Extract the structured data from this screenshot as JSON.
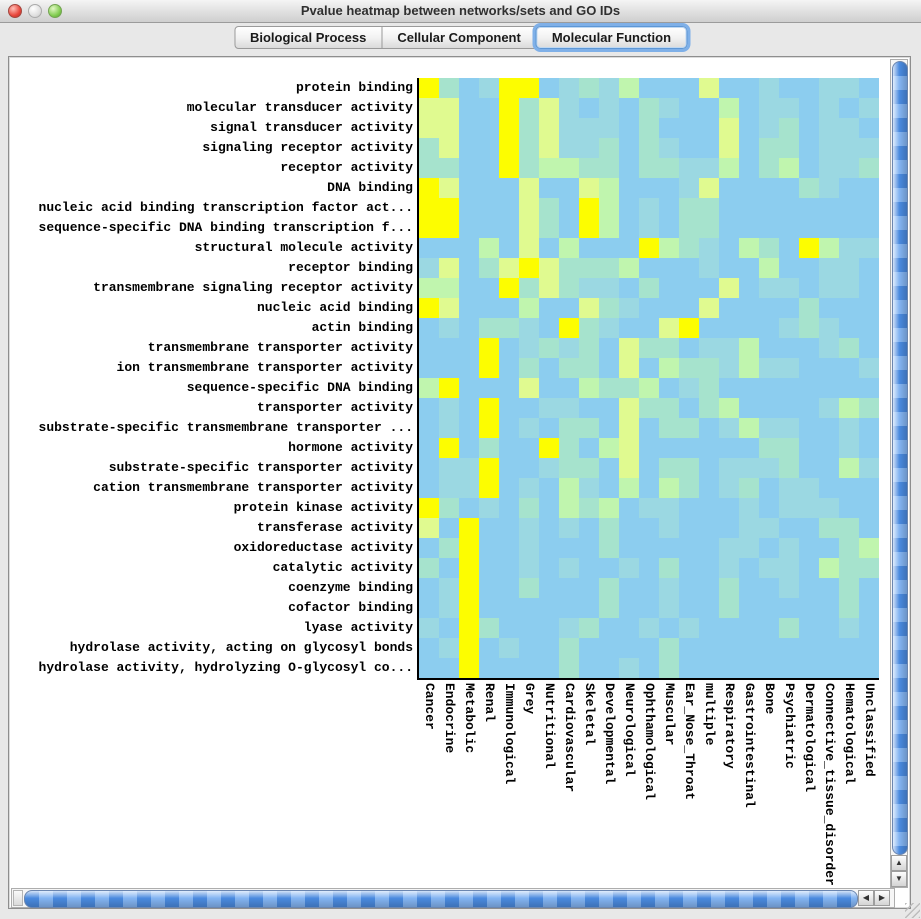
{
  "window": {
    "title": "Pvalue heatmap between networks/sets and GO IDs"
  },
  "tabs": [
    {
      "label": "Biological Process",
      "selected": false
    },
    {
      "label": "Cellular Component",
      "selected": false
    },
    {
      "label": "Molecular Function",
      "selected": true
    }
  ],
  "icons": {
    "scroll_up": "▲",
    "scroll_down": "▼",
    "scroll_left": "◀",
    "scroll_right": "▶"
  },
  "chart_data": {
    "type": "heatmap",
    "title": "Pvalue heatmap between networks/sets and GO IDs",
    "value_scale_note": "levels 0-5 from low (blue) to high (yellow) significance",
    "palette": [
      "#8CCDEF",
      "#9BD8E2",
      "#A6E3CD",
      "#C0F5AE",
      "#E0FA90",
      "#FDFD00"
    ],
    "rows": [
      "protein binding",
      "molecular transducer activity",
      "signal transducer activity",
      "signaling receptor activity",
      "receptor activity",
      "DNA binding",
      "nucleic acid binding transcription factor act...",
      "sequence-specific DNA binding transcription f...",
      "structural molecule activity",
      "receptor binding",
      "transmembrane signaling receptor activity",
      "nucleic acid binding",
      "actin binding",
      "transmembrane transporter activity",
      "ion transmembrane transporter activity",
      "sequence-specific DNA binding",
      "transporter activity",
      "substrate-specific transmembrane transporter ...",
      "hormone activity",
      "substrate-specific transporter activity",
      "cation transmembrane transporter activity",
      "protein kinase activity",
      "transferase activity",
      "oxidoreductase activity",
      "catalytic activity",
      "coenzyme binding",
      "cofactor binding",
      "lyase activity",
      "hydrolase activity, acting on glycosyl bonds",
      "hydrolase activity, hydrolyzing O-glycosyl co..."
    ],
    "columns": [
      "Cancer",
      "Endocrine",
      "Metabolic",
      "Renal",
      "Immunological",
      "Grey",
      "Nutritional",
      "Cardiovascular",
      "Skeletal",
      "Developmental",
      "Neurological",
      "Ophthamological",
      "Muscular",
      "Ear_Nose_Throat",
      "multiple",
      "Respiratory",
      "Gastrointestinal",
      "Bone",
      "Psychiatric",
      "Dermatological",
      "Connective_tissue_disorder",
      "Hematological",
      "Unclassified"
    ],
    "matrix": [
      [
        5,
        2,
        0,
        1,
        5,
        5,
        0,
        1,
        2,
        1,
        3,
        0,
        0,
        0,
        4,
        0,
        0,
        1,
        0,
        0,
        1,
        1,
        0
      ],
      [
        4,
        4,
        0,
        0,
        5,
        2,
        4,
        1,
        0,
        1,
        0,
        2,
        1,
        0,
        0,
        3,
        0,
        1,
        1,
        0,
        1,
        0,
        1
      ],
      [
        4,
        4,
        0,
        0,
        5,
        2,
        4,
        1,
        1,
        1,
        0,
        2,
        0,
        0,
        0,
        4,
        0,
        1,
        2,
        0,
        1,
        1,
        0
      ],
      [
        2,
        4,
        0,
        0,
        5,
        2,
        4,
        1,
        1,
        2,
        0,
        2,
        1,
        0,
        0,
        4,
        0,
        2,
        2,
        0,
        1,
        1,
        1
      ],
      [
        2,
        2,
        0,
        0,
        5,
        2,
        3,
        3,
        2,
        2,
        0,
        2,
        2,
        1,
        1,
        3,
        0,
        2,
        3,
        0,
        1,
        1,
        2
      ],
      [
        5,
        4,
        0,
        0,
        0,
        4,
        0,
        0,
        4,
        3,
        0,
        0,
        0,
        1,
        4,
        0,
        0,
        0,
        0,
        2,
        1,
        0,
        0
      ],
      [
        5,
        5,
        0,
        0,
        0,
        4,
        2,
        0,
        5,
        3,
        0,
        1,
        0,
        2,
        2,
        0,
        0,
        0,
        0,
        0,
        0,
        0,
        0
      ],
      [
        5,
        5,
        0,
        0,
        0,
        4,
        2,
        0,
        5,
        3,
        0,
        1,
        0,
        2,
        2,
        0,
        0,
        0,
        0,
        0,
        0,
        0,
        0
      ],
      [
        0,
        0,
        0,
        3,
        0,
        4,
        0,
        3,
        0,
        0,
        0,
        5,
        3,
        2,
        1,
        0,
        3,
        2,
        0,
        5,
        3,
        1,
        1
      ],
      [
        1,
        4,
        0,
        2,
        4,
        5,
        4,
        2,
        2,
        2,
        3,
        0,
        0,
        0,
        1,
        0,
        0,
        3,
        0,
        0,
        1,
        1,
        0
      ],
      [
        3,
        3,
        0,
        0,
        5,
        2,
        4,
        2,
        1,
        1,
        0,
        2,
        0,
        0,
        0,
        4,
        0,
        1,
        1,
        0,
        1,
        1,
        0
      ],
      [
        5,
        4,
        0,
        0,
        0,
        3,
        0,
        0,
        4,
        2,
        1,
        0,
        0,
        0,
        4,
        0,
        0,
        0,
        0,
        2,
        0,
        0,
        0
      ],
      [
        0,
        1,
        0,
        2,
        2,
        1,
        0,
        5,
        2,
        1,
        0,
        0,
        4,
        5,
        0,
        0,
        0,
        0,
        1,
        2,
        1,
        0,
        0
      ],
      [
        0,
        0,
        0,
        5,
        0,
        1,
        2,
        1,
        2,
        0,
        4,
        2,
        2,
        0,
        1,
        1,
        3,
        0,
        0,
        0,
        1,
        2,
        0
      ],
      [
        0,
        0,
        0,
        5,
        0,
        2,
        0,
        2,
        2,
        0,
        4,
        0,
        3,
        2,
        2,
        1,
        3,
        1,
        1,
        0,
        0,
        0,
        1
      ],
      [
        3,
        5,
        0,
        0,
        0,
        4,
        0,
        0,
        3,
        2,
        2,
        3,
        0,
        1,
        2,
        0,
        0,
        0,
        0,
        0,
        0,
        0,
        0
      ],
      [
        0,
        1,
        0,
        5,
        0,
        0,
        1,
        1,
        0,
        0,
        4,
        2,
        2,
        0,
        2,
        3,
        0,
        0,
        0,
        0,
        1,
        3,
        2
      ],
      [
        0,
        1,
        0,
        5,
        0,
        1,
        0,
        2,
        2,
        0,
        4,
        0,
        2,
        2,
        0,
        1,
        3,
        1,
        1,
        0,
        0,
        1,
        0
      ],
      [
        0,
        5,
        0,
        2,
        0,
        0,
        5,
        2,
        0,
        3,
        4,
        0,
        0,
        0,
        0,
        0,
        0,
        2,
        2,
        0,
        0,
        1,
        0
      ],
      [
        0,
        1,
        1,
        5,
        0,
        0,
        1,
        2,
        2,
        0,
        4,
        0,
        2,
        2,
        0,
        1,
        1,
        1,
        2,
        0,
        0,
        3,
        1
      ],
      [
        0,
        1,
        1,
        5,
        0,
        1,
        0,
        3,
        1,
        0,
        3,
        0,
        3,
        2,
        0,
        1,
        2,
        0,
        1,
        1,
        0,
        0,
        0
      ],
      [
        5,
        2,
        0,
        1,
        0,
        2,
        0,
        3,
        2,
        3,
        0,
        1,
        1,
        0,
        0,
        0,
        1,
        0,
        1,
        1,
        1,
        0,
        0
      ],
      [
        4,
        0,
        5,
        0,
        0,
        1,
        0,
        1,
        0,
        2,
        0,
        0,
        1,
        0,
        0,
        0,
        1,
        1,
        0,
        0,
        2,
        2,
        0
      ],
      [
        0,
        2,
        5,
        0,
        0,
        1,
        0,
        0,
        0,
        2,
        0,
        0,
        0,
        0,
        0,
        1,
        1,
        0,
        1,
        0,
        0,
        2,
        3
      ],
      [
        2,
        0,
        5,
        0,
        0,
        1,
        0,
        1,
        0,
        0,
        1,
        0,
        2,
        0,
        0,
        1,
        0,
        1,
        1,
        0,
        3,
        2,
        2
      ],
      [
        0,
        1,
        5,
        0,
        0,
        2,
        0,
        0,
        0,
        2,
        0,
        0,
        1,
        0,
        0,
        2,
        0,
        0,
        1,
        0,
        0,
        2,
        0
      ],
      [
        0,
        1,
        5,
        0,
        0,
        0,
        0,
        0,
        0,
        2,
        0,
        0,
        1,
        0,
        0,
        2,
        0,
        0,
        0,
        0,
        0,
        2,
        0
      ],
      [
        1,
        0,
        5,
        2,
        0,
        0,
        0,
        1,
        2,
        0,
        0,
        1,
        0,
        1,
        0,
        0,
        0,
        0,
        2,
        0,
        0,
        1,
        0
      ],
      [
        0,
        1,
        5,
        0,
        1,
        0,
        0,
        2,
        0,
        0,
        0,
        0,
        2,
        0,
        0,
        0,
        0,
        0,
        0,
        0,
        0,
        0,
        0
      ],
      [
        0,
        0,
        5,
        0,
        0,
        0,
        0,
        2,
        0,
        0,
        1,
        0,
        2,
        0,
        0,
        0,
        0,
        0,
        0,
        0,
        0,
        0,
        0
      ]
    ]
  }
}
